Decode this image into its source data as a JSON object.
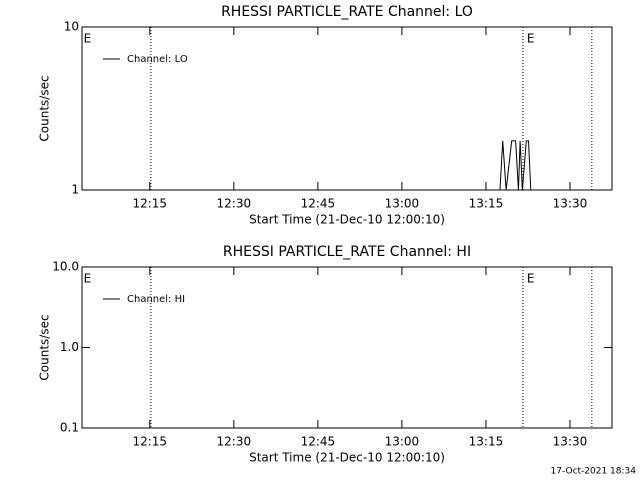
{
  "chart_data": [
    {
      "type": "line",
      "title": "RHESSI PARTICLE_RATE Channel: LO",
      "ylabel": "Counts/sec",
      "xlabel": "Start Time (21-Dec-10 12:00:10)",
      "log_y": true,
      "ylim": [
        1,
        10
      ],
      "yticks": [
        1,
        10
      ],
      "xlim": [
        722.9,
        817.5
      ],
      "xticks": [
        {
          "value": 735,
          "label": "12:15"
        },
        {
          "value": 750,
          "label": "12:30"
        },
        {
          "value": 765,
          "label": "12:45"
        },
        {
          "value": 780,
          "label": "13:00"
        },
        {
          "value": 795,
          "label": "13:15"
        },
        {
          "value": 810,
          "label": "13:30"
        }
      ],
      "vlines": [
        735.2,
        801.6,
        813.9
      ],
      "flags": [
        {
          "x": 723.2,
          "label": "E"
        },
        {
          "x": 802.3,
          "label": "E"
        }
      ],
      "legend": "upper left",
      "series": [
        {
          "name": "Channel: LO",
          "color": "#000000",
          "x": [
            797.5,
            798.0,
            798.6,
            799.6,
            800.3,
            800.8,
            801.1,
            801.5,
            802.2,
            802.6,
            803.0
          ],
          "values": [
            1,
            2,
            1,
            2,
            2,
            1,
            2,
            1,
            2,
            2,
            1
          ]
        }
      ]
    },
    {
      "type": "line",
      "title": "RHESSI PARTICLE_RATE Channel: HI",
      "ylabel": "Counts/sec",
      "xlabel": "Start Time (21-Dec-10 12:00:10)",
      "log_y": true,
      "ylim": [
        0.1,
        10
      ],
      "yticks": [
        {
          "value": 0.1,
          "label": "0.1"
        },
        {
          "value": 1,
          "label": "1.0"
        },
        {
          "value": 10,
          "label": "10.0"
        }
      ],
      "xlim": [
        722.9,
        817.5
      ],
      "xticks": [
        {
          "value": 735,
          "label": "12:15"
        },
        {
          "value": 750,
          "label": "12:30"
        },
        {
          "value": 765,
          "label": "12:45"
        },
        {
          "value": 780,
          "label": "13:00"
        },
        {
          "value": 795,
          "label": "13:15"
        },
        {
          "value": 810,
          "label": "13:30"
        }
      ],
      "vlines": [
        735.2,
        801.6,
        813.9
      ],
      "flags": [
        {
          "x": 723.2,
          "label": "E"
        },
        {
          "x": 802.3,
          "label": "E"
        }
      ],
      "legend": "upper left",
      "series": [
        {
          "name": "Channel: HI",
          "color": "#000000",
          "x": [],
          "values": []
        }
      ]
    }
  ],
  "footer": "17-Oct-2021 18:34"
}
